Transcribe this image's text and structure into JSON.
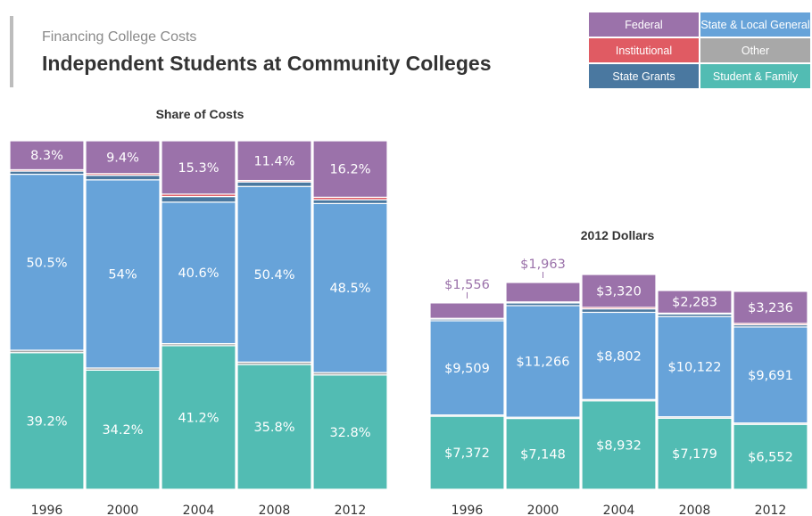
{
  "header": {
    "kicker": "Financing College Costs",
    "title": "Independent Students at Community Colleges"
  },
  "legend": [
    {
      "label": "Federal",
      "color": "#9b72aa"
    },
    {
      "label": "State & Local General",
      "color": "#67a3d9"
    },
    {
      "label": "Institutional",
      "color": "#e05b63"
    },
    {
      "label": "Other",
      "color": "#a8a8a8"
    },
    {
      "label": "State Grants",
      "color": "#4a78a0"
    },
    {
      "label": "Student & Family",
      "color": "#52bcb3"
    }
  ],
  "chart_data": [
    {
      "type": "bar",
      "stacked": true,
      "title": "Share of Costs",
      "ylim": [
        0,
        100
      ],
      "categories": [
        "1996",
        "2000",
        "2004",
        "2008",
        "2012"
      ],
      "series": [
        {
          "name": "Student & Family",
          "color": "#52bcb3",
          "values": [
            39.2,
            34.2,
            41.2,
            35.8,
            32.8
          ],
          "labels": [
            "39.2%",
            "34.2%",
            "41.2%",
            "35.8%",
            "32.8%"
          ]
        },
        {
          "name": "Other",
          "color": "#a8a8a8",
          "values": [
            0.7,
            0.6,
            0.6,
            0.7,
            0.7
          ]
        },
        {
          "name": "State & Local General",
          "color": "#67a3d9",
          "values": [
            50.5,
            54,
            40.6,
            50.4,
            48.5
          ],
          "labels": [
            "50.5%",
            "54%",
            "40.6%",
            "50.4%",
            "48.5%"
          ]
        },
        {
          "name": "State Grants",
          "color": "#4a78a0",
          "values": [
            0.9,
            1.3,
            1.6,
            1.3,
            1.1
          ]
        },
        {
          "name": "Institutional",
          "color": "#e05b63",
          "values": [
            0.4,
            0.5,
            0.7,
            0.4,
            0.7
          ]
        },
        {
          "name": "Federal",
          "color": "#9b72aa",
          "values": [
            8.3,
            9.4,
            15.3,
            11.4,
            16.2
          ],
          "labels": [
            "8.3%",
            "9.4%",
            "15.3%",
            "11.4%",
            "16.2%"
          ]
        }
      ]
    },
    {
      "type": "bar",
      "stacked": true,
      "title": "2012 Dollars",
      "categories": [
        "1996",
        "2000",
        "2004",
        "2008",
        "2012"
      ],
      "series": [
        {
          "name": "Student & Family",
          "color": "#52bcb3",
          "values": [
            7372,
            7148,
            8932,
            7179,
            6552
          ],
          "labels": [
            "$7,372",
            "$7,148",
            "$8,932",
            "$7,179",
            "$6,552"
          ]
        },
        {
          "name": "Other",
          "color": "#a8a8a8",
          "values": [
            130,
            125,
            130,
            140,
            140
          ]
        },
        {
          "name": "State & Local General",
          "color": "#67a3d9",
          "values": [
            9509,
            11266,
            8802,
            10122,
            9691
          ],
          "labels": [
            "$9,509",
            "$11,266",
            "$8,802",
            "$10,122",
            "$9,691"
          ]
        },
        {
          "name": "State Grants",
          "color": "#4a78a0",
          "values": [
            170,
            270,
            350,
            260,
            220
          ]
        },
        {
          "name": "Institutional",
          "color": "#e05b63",
          "values": [
            75,
            105,
            150,
            80,
            140
          ]
        },
        {
          "name": "Federal",
          "color": "#9b72aa",
          "values": [
            1556,
            1963,
            3320,
            2283,
            3236
          ],
          "labels": [
            "$1,556",
            "$1,963",
            "$3,320",
            "$2,283",
            "$3,236"
          ]
        }
      ]
    }
  ]
}
